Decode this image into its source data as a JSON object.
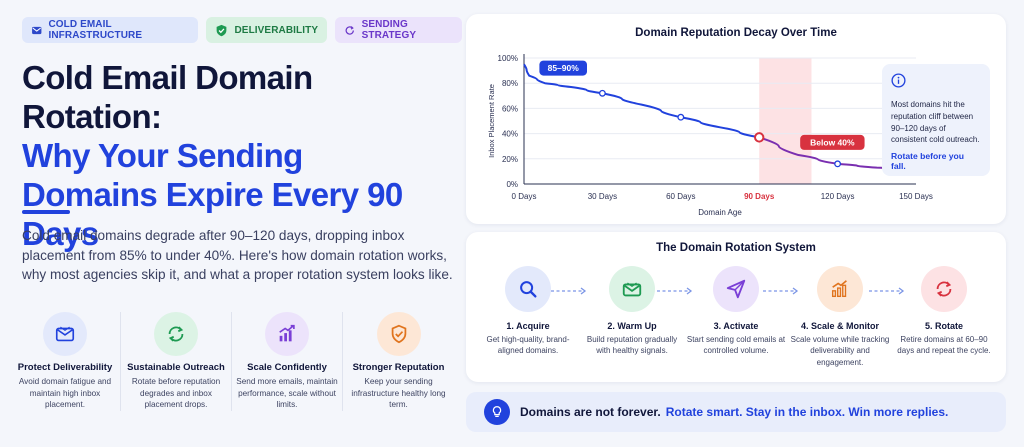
{
  "tags": [
    {
      "label": "COLD EMAIL INFRASTRUCTURE",
      "icon": "envelope-icon"
    },
    {
      "label": "DELIVERABILITY",
      "icon": "shield-check-icon"
    },
    {
      "label": "SENDING STRATEGY",
      "icon": "refresh-icon"
    }
  ],
  "headline": {
    "line1": "Cold Email Domain",
    "line2": "Rotation:",
    "line3": "Why Your Sending",
    "line4": "Domains Expire Every 90 Days"
  },
  "description": "Cold email domains degrade after 90–120 days, dropping inbox placement from 85% to under 40%. Here's how domain rotation works, why most agencies skip it, and what a proper rotation system looks like.",
  "features": [
    {
      "title": "Protect Deliverability",
      "desc": "Avoid domain fatigue and maintain high inbox placement.",
      "icon": "envelope-icon",
      "color": "#2142dd",
      "bg": "#e3e9fb"
    },
    {
      "title": "Sustainable Outreach",
      "desc": "Rotate before reputation degrades and inbox placement drops.",
      "icon": "refresh-icon",
      "color": "#1e9a52",
      "bg": "#dcf3e5"
    },
    {
      "title": "Scale Confidently",
      "desc": "Send more emails, maintain performance, scale without limits.",
      "icon": "bar-chart-up-icon",
      "color": "#7a3fd6",
      "bg": "#ece3fb"
    },
    {
      "title": "Stronger Reputation",
      "desc": "Keep your sending infrastructure healthy long term.",
      "icon": "shield-check-icon",
      "color": "#e0741e",
      "bg": "#fde7d6"
    }
  ],
  "chart_data": {
    "type": "line",
    "title": "Domain Reputation Decay Over Time",
    "xlabel": "Domain Age",
    "ylabel": "Inbox Placement Rate",
    "x_tick_labels": [
      "0 Days",
      "30 Days",
      "60 Days",
      "90 Days",
      "120 Days",
      "150 Days"
    ],
    "y_tick_labels": [
      "0%",
      "20%",
      "40%",
      "60%",
      "80%",
      "100%"
    ],
    "xlim": [
      0,
      150
    ],
    "ylim": [
      0,
      100
    ],
    "series": [
      {
        "x": [
          0,
          2,
          8,
          18,
          30,
          45,
          60,
          75,
          90,
          105,
          120,
          135,
          150
        ],
        "y": [
          95,
          86,
          80,
          77,
          72,
          63,
          53,
          45,
          37,
          23,
          16,
          13,
          11
        ]
      }
    ],
    "markers_x": [
      30,
      60,
      90,
      120,
      150
    ],
    "highlight_band": {
      "x_from": 90,
      "x_to": 110,
      "color": "#fde2e4"
    },
    "annotations": [
      {
        "text": "85–90%",
        "x": 15,
        "y": 92,
        "color": "#2142dd"
      },
      {
        "text": "Below 40%",
        "x": 118,
        "y": 33,
        "color": "#d8323f"
      }
    ],
    "highlight_tick": "90 Days",
    "grid": true
  },
  "callout": {
    "text": "Most domains hit the reputation cliff between 90–120 days of consistent cold outreach.",
    "cta": "Rotate before you fall."
  },
  "rotation": {
    "title": "The Domain Rotation System",
    "steps": [
      {
        "title": "1. Acquire",
        "desc": "Get high-quality, brand-aligned domains.",
        "icon": "search-icon",
        "color": "#2142dd",
        "bg": "#e3e9fb"
      },
      {
        "title": "2. Warm Up",
        "desc": "Build reputation gradually with healthy signals.",
        "icon": "envelope-icon",
        "color": "#1e9a52",
        "bg": "#dcf3e5"
      },
      {
        "title": "3. Activate",
        "desc": "Start sending cold emails at controlled volume.",
        "icon": "paper-plane-icon",
        "color": "#7a3fd6",
        "bg": "#ece3fb"
      },
      {
        "title": "4. Scale & Monitor",
        "desc": "Scale volume while tracking deliverability and engagement.",
        "icon": "bar-chart-up-icon",
        "color": "#e0741e",
        "bg": "#fde7d6"
      },
      {
        "title": "5. Rotate",
        "desc": "Retire domains at 60–90 days and repeat the cycle.",
        "icon": "refresh-icon",
        "color": "#d8323f",
        "bg": "#fde2e4"
      }
    ]
  },
  "banner": {
    "dark": "Domains are not forever.",
    "blue": "Rotate smart. Stay in the inbox. Win more replies.",
    "icon": "lightbulb-icon"
  }
}
